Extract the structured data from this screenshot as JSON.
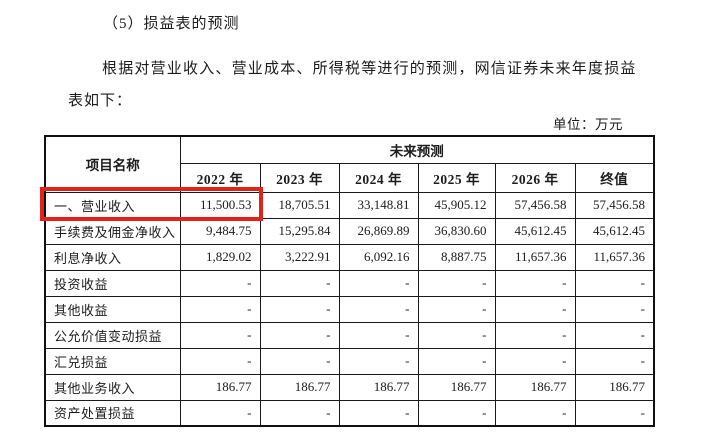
{
  "page": {
    "heading": "（5）损益表的预测",
    "paragraph_line1": "根据对营业收入、营业成本、所得税等进行的预测，网信证券未来年度损益",
    "paragraph_line2": "表如下：",
    "unit_label": "单位：万元"
  },
  "table": {
    "item_header": "项目名称",
    "forecast_header": "未来预测",
    "year_headers": [
      "2022 年",
      "2023 年",
      "2024 年",
      "2025 年",
      "2026 年",
      "终值"
    ],
    "rows": [
      {
        "name": "一、营业收入",
        "highlighted": true,
        "values": [
          "11,500.53",
          "18,705.51",
          "33,148.81",
          "45,905.12",
          "57,456.58",
          "57,456.58"
        ]
      },
      {
        "name": "手续费及佣金净收入",
        "highlighted": false,
        "values": [
          "9,484.75",
          "15,295.84",
          "26,869.89",
          "36,830.60",
          "45,612.45",
          "45,612.45"
        ]
      },
      {
        "name": "利息净收入",
        "highlighted": false,
        "values": [
          "1,829.02",
          "3,222.91",
          "6,092.16",
          "8,887.75",
          "11,657.36",
          "11,657.36"
        ]
      },
      {
        "name": "投资收益",
        "highlighted": false,
        "values": [
          "-",
          "-",
          "-",
          "-",
          "-",
          "-"
        ]
      },
      {
        "name": "其他收益",
        "highlighted": false,
        "values": [
          "-",
          "-",
          "-",
          "-",
          "-",
          "-"
        ]
      },
      {
        "name": "公允价值变动损益",
        "highlighted": false,
        "values": [
          "-",
          "-",
          "-",
          "-",
          "-",
          "-"
        ]
      },
      {
        "name": "汇兑损益",
        "highlighted": false,
        "values": [
          "-",
          "-",
          "-",
          "-",
          "-",
          "-"
        ]
      },
      {
        "name": "其他业务收入",
        "highlighted": false,
        "values": [
          "186.77",
          "186.77",
          "186.77",
          "186.77",
          "186.77",
          "186.77"
        ]
      },
      {
        "name": "资产处置损益",
        "highlighted": false,
        "values": [
          "-",
          "-",
          "-",
          "-",
          "-",
          "-"
        ]
      }
    ],
    "highlight_color": "#e2231a",
    "highlight_span_columns": 2
  }
}
